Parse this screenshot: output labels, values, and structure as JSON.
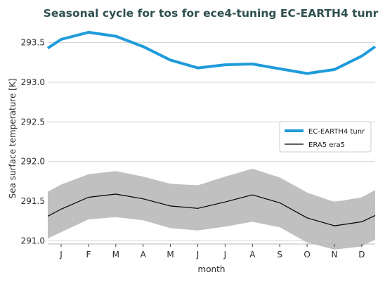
{
  "chart_data": {
    "type": "line",
    "title": "Seasonal cycle for tos for ece4-tuning EC-EARTH4 tunr",
    "xlabel": "month",
    "ylabel": "Sea surface temperature [K]",
    "categories": [
      "J",
      "F",
      "M",
      "A",
      "M",
      "J",
      "J",
      "A",
      "S",
      "O",
      "N",
      "D"
    ],
    "ylim": [
      290.96,
      293.7
    ],
    "yticks": [
      291.0,
      291.5,
      292.0,
      292.5,
      293.0,
      293.5
    ],
    "ytick_labels": [
      "291.0",
      "291.5",
      "292.0",
      "292.5",
      "293.0",
      "293.5"
    ],
    "grid": "horizontal",
    "legend_position": "center-right",
    "series": [
      {
        "name": "EC-EARTH4 tunr",
        "color": "#1f9bdb",
        "values": [
          293.54,
          293.63,
          293.58,
          293.45,
          293.28,
          293.18,
          293.22,
          293.23,
          293.17,
          293.11,
          293.16,
          293.33
        ],
        "edge_values": [
          293.43,
          293.45
        ]
      },
      {
        "name": "ERA5 era5",
        "color": "#000000",
        "values": [
          291.4,
          291.55,
          291.59,
          291.53,
          291.44,
          291.41,
          291.49,
          291.58,
          291.48,
          291.29,
          291.19,
          291.24
        ],
        "edge_values": [
          291.31,
          291.32
        ],
        "band_upper": [
          291.71,
          291.84,
          291.88,
          291.81,
          291.72,
          291.7,
          291.81,
          291.91,
          291.8,
          291.61,
          291.49,
          291.55
        ],
        "band_upper_edges": [
          291.62,
          291.64
        ],
        "band_lower": [
          291.11,
          291.27,
          291.3,
          291.26,
          291.16,
          291.13,
          291.18,
          291.24,
          291.17,
          290.98,
          290.89,
          290.93
        ],
        "band_lower_edges": [
          291.03,
          291.02
        ],
        "band_color": "#c0c0c0"
      }
    ]
  }
}
